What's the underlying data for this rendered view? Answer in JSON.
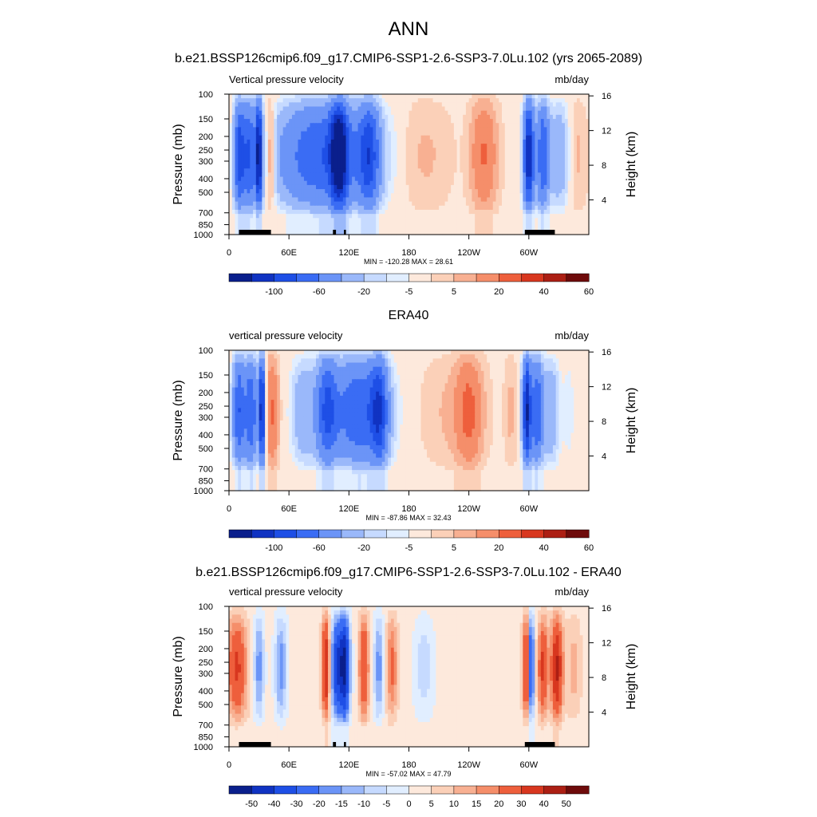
{
  "main_title": "ANN",
  "colors": {
    "blue_levels": [
      "#0a1f8c",
      "#1033c2",
      "#1e4fe6",
      "#3a6cf4",
      "#6b94f7",
      "#9ab8fa",
      "#c6daff",
      "#e1eeff"
    ],
    "red_levels": [
      "#fde9dc",
      "#fbd0b8",
      "#f8b092",
      "#f58e6a",
      "#ee5f3c",
      "#d8371f",
      "#ac1f14",
      "#6e0b0b"
    ],
    "land": "#000000"
  },
  "chart_data": [
    {
      "type": "heatmap",
      "title": "b.e21.BSSP126cmip6.f09_g17.CMIP6-SSP1-2.6-SSP3-7.0Lu.102 (yrs 2065-2089)",
      "left_label": "Vertical pressure velocity",
      "right_label": "mb/day",
      "ylabel": "Pressure (mb)",
      "ylabel_right": "Height (km)",
      "y_ticks": [
        "100",
        "150",
        "200",
        "250",
        "300",
        "400",
        "500",
        "700",
        "850",
        "1000"
      ],
      "y_ticks_right": [
        "16",
        "12",
        "8",
        "4"
      ],
      "x_ticks": [
        "0",
        "60E",
        "120E",
        "180",
        "120W",
        "60W"
      ],
      "stats": "MIN = -120.28  MAX =  28.61",
      "min": -120.28,
      "max": 28.61,
      "colorbar_labels": [
        "-100",
        "-60",
        "-20",
        "-5",
        "5",
        "20",
        "40",
        "60"
      ],
      "land_spans_lon": [
        [
          10,
          42
        ],
        [
          104,
          107
        ],
        [
          115,
          117
        ],
        [
          296,
          326
        ]
      ],
      "features": [
        {
          "lon": 10,
          "width": 5,
          "level": -60
        },
        {
          "lon": 20,
          "width": 8,
          "level": -60
        },
        {
          "lon": 30,
          "width": 3,
          "level": -100
        },
        {
          "lon": 42,
          "width": 5,
          "level": 20
        },
        {
          "lon": 95,
          "width": 45,
          "level": -60
        },
        {
          "lon": 110,
          "width": 8,
          "level": -100
        },
        {
          "lon": 140,
          "width": 10,
          "level": -60
        },
        {
          "lon": 195,
          "width": 25,
          "level": 5
        },
        {
          "lon": 255,
          "width": 12,
          "level": 20
        },
        {
          "lon": 300,
          "width": 5,
          "level": -100
        },
        {
          "lon": 314,
          "width": 6,
          "level": -60
        },
        {
          "lon": 330,
          "width": 10,
          "level": -20
        },
        {
          "lon": 348,
          "width": 10,
          "level": 5
        }
      ]
    },
    {
      "type": "heatmap",
      "title": "ERA40",
      "left_label": "vertical pressure velocity",
      "right_label": "mb/day",
      "ylabel": "Pressure (mb)",
      "ylabel_right": "Height (km)",
      "y_ticks": [
        "100",
        "150",
        "200",
        "250",
        "300",
        "400",
        "500",
        "700",
        "850",
        "1000"
      ],
      "y_ticks_right": [
        "16",
        "12",
        "8",
        "4"
      ],
      "x_ticks": [
        "0",
        "60E",
        "120E",
        "180",
        "120W",
        "60W"
      ],
      "stats": "MIN = -87.86  MAX =  32.43",
      "min": -87.86,
      "max": 32.43,
      "colorbar_labels": [
        "-100",
        "-60",
        "-20",
        "-5",
        "5",
        "20",
        "40",
        "60"
      ],
      "land_spans_lon": [],
      "features": [
        {
          "lon": 10,
          "width": 6,
          "level": -60
        },
        {
          "lon": 22,
          "width": 6,
          "level": -60
        },
        {
          "lon": 33,
          "width": 3,
          "level": -100
        },
        {
          "lon": 43,
          "width": 6,
          "level": 20
        },
        {
          "lon": 75,
          "width": 12,
          "level": -20
        },
        {
          "lon": 98,
          "width": 10,
          "level": -60
        },
        {
          "lon": 130,
          "width": 25,
          "level": -60
        },
        {
          "lon": 150,
          "width": 8,
          "level": -60
        },
        {
          "lon": 225,
          "width": 28,
          "level": 5
        },
        {
          "lon": 240,
          "width": 12,
          "level": 20
        },
        {
          "lon": 282,
          "width": 6,
          "level": 5
        },
        {
          "lon": 298,
          "width": 4,
          "level": -100
        },
        {
          "lon": 308,
          "width": 6,
          "level": -60
        },
        {
          "lon": 322,
          "width": 8,
          "level": -20
        },
        {
          "lon": 340,
          "width": 6,
          "level": -5
        }
      ]
    },
    {
      "type": "heatmap",
      "title": "b.e21.BSSP126cmip6.f09_g17.CMIP6-SSP1-2.6-SSP3-7.0Lu.102 - ERA40",
      "left_label": "vertical pressure velocity",
      "right_label": "mb/day",
      "ylabel": "Pressure (mb)",
      "ylabel_right": "Height (km)",
      "y_ticks": [
        "100",
        "150",
        "200",
        "250",
        "300",
        "400",
        "500",
        "700",
        "850",
        "1000"
      ],
      "y_ticks_right": [
        "16",
        "12",
        "8",
        "4"
      ],
      "x_ticks": [
        "0",
        "60E",
        "120E",
        "180",
        "120W",
        "60W"
      ],
      "stats": "MIN = -57.02  MAX =  47.79",
      "min": -57.02,
      "max": 47.79,
      "colorbar_labels": [
        "-50",
        "-40",
        "-30",
        "-20",
        "-15",
        "-10",
        "-5",
        "0",
        "5",
        "10",
        "15",
        "20",
        "30",
        "40",
        "50"
      ],
      "land_spans_lon": [
        [
          10,
          42
        ],
        [
          104,
          107
        ],
        [
          115,
          117
        ],
        [
          296,
          326
        ]
      ],
      "features": [
        {
          "lon": 8,
          "width": 10,
          "level": 30
        },
        {
          "lon": 30,
          "width": 5,
          "level": -20
        },
        {
          "lon": 52,
          "width": 6,
          "level": -20
        },
        {
          "lon": 97,
          "width": 4,
          "level": 40
        },
        {
          "lon": 108,
          "width": 6,
          "level": -40
        },
        {
          "lon": 116,
          "width": 5,
          "level": -50
        },
        {
          "lon": 135,
          "width": 5,
          "level": 30
        },
        {
          "lon": 150,
          "width": 5,
          "level": -20
        },
        {
          "lon": 163,
          "width": 6,
          "level": 20
        },
        {
          "lon": 195,
          "width": 10,
          "level": -10
        },
        {
          "lon": 298,
          "width": 4,
          "level": 40
        },
        {
          "lon": 302,
          "width": 3,
          "level": -50
        },
        {
          "lon": 314,
          "width": 5,
          "level": 30
        },
        {
          "lon": 328,
          "width": 6,
          "level": 40
        },
        {
          "lon": 345,
          "width": 8,
          "level": 10
        }
      ]
    }
  ]
}
